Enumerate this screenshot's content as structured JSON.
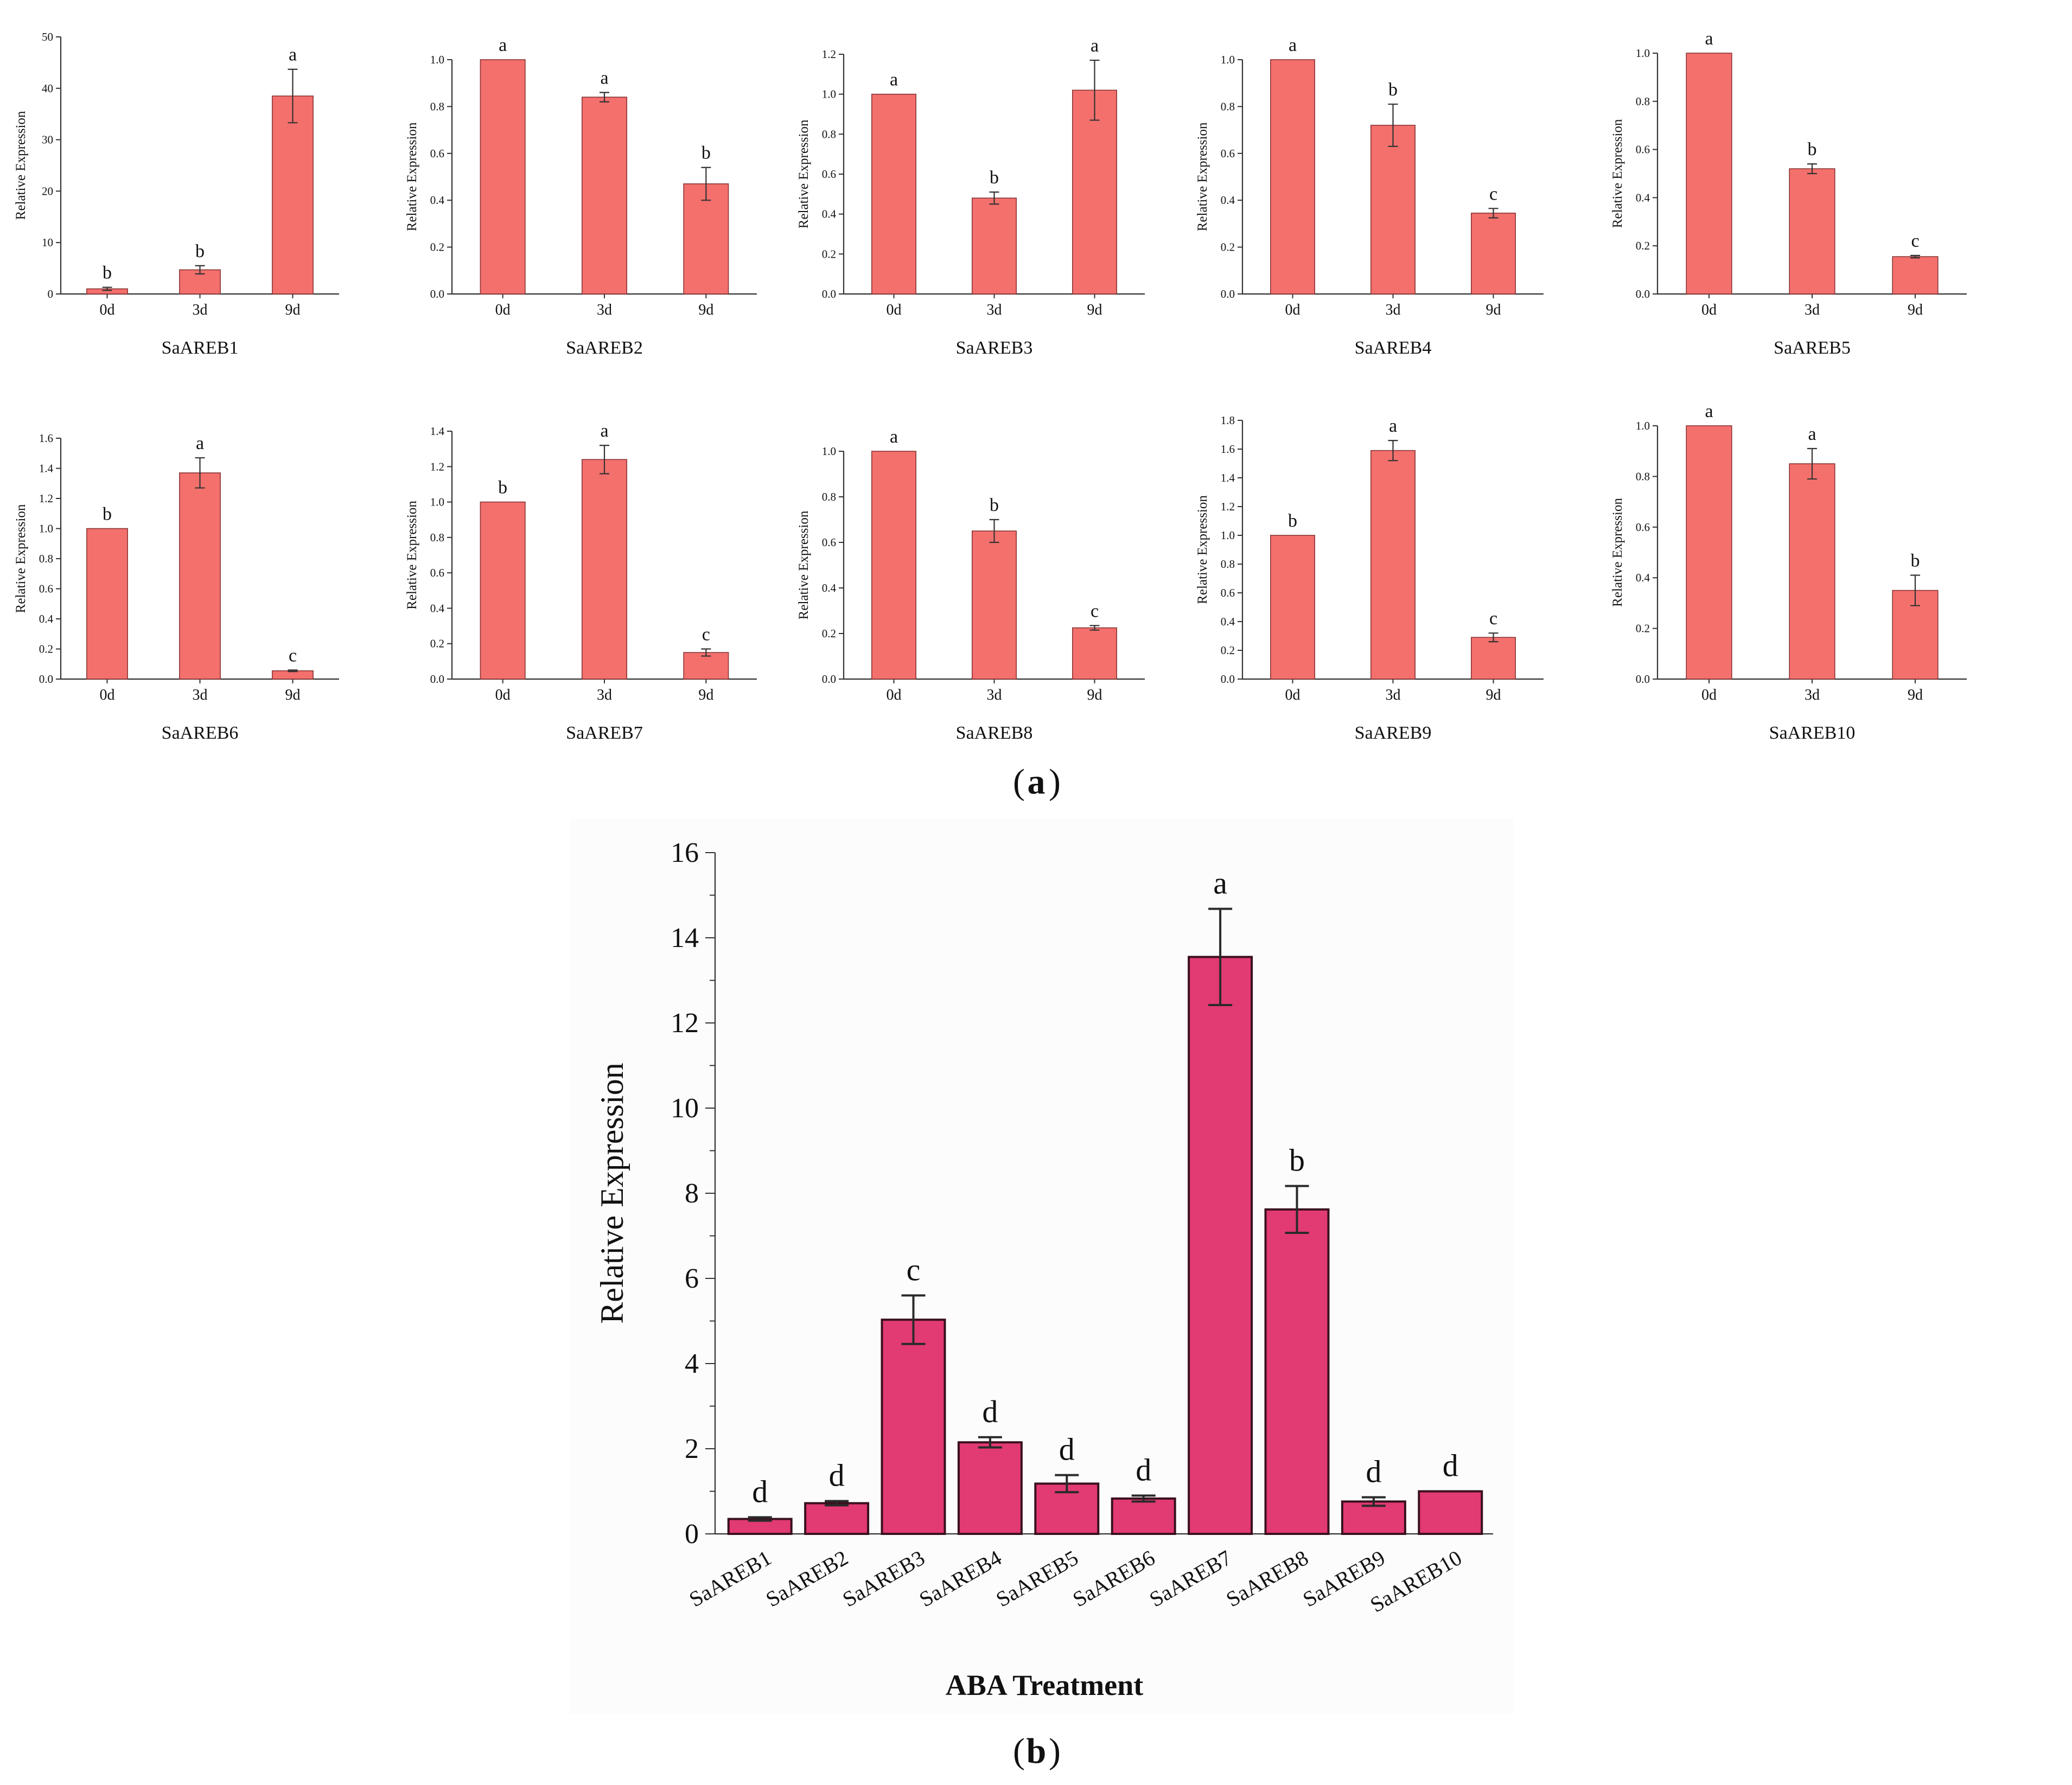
{
  "panel_a_label": "a",
  "panel_b_label": "b",
  "colors": {
    "panel_a_bar": "#F4706D",
    "panel_a_bar_edge": "#8a3535",
    "panel_b_bar": "#E23A72",
    "panel_b_bar_edge": "#3a1020",
    "axis": "#333333"
  },
  "chart_data": [
    {
      "type": "bar",
      "title": "",
      "xlabel": "SaAREB1",
      "ylabel": "Relative Expression",
      "categories": [
        "0d",
        "3d",
        "9d"
      ],
      "values": [
        1.0,
        4.7,
        38.5
      ],
      "errors": [
        0.3,
        0.8,
        5.2
      ],
      "letters": [
        "b",
        "b",
        "a"
      ],
      "ylim": [
        0,
        50
      ],
      "yticks": [
        0,
        10,
        20,
        30,
        40,
        50
      ],
      "decimals": 0
    },
    {
      "type": "bar",
      "title": "",
      "xlabel": "SaAREB2",
      "ylabel": "Relative Expression",
      "categories": [
        "0d",
        "3d",
        "9d"
      ],
      "values": [
        1.0,
        0.84,
        0.47
      ],
      "errors": [
        0.0,
        0.02,
        0.07
      ],
      "letters": [
        "a",
        "a",
        "b"
      ],
      "ylim": [
        0,
        1.0
      ],
      "yticks": [
        0,
        0.2,
        0.4,
        0.6,
        0.8,
        1.0
      ],
      "decimals": 1
    },
    {
      "type": "bar",
      "title": "",
      "xlabel": "SaAREB3",
      "ylabel": "Relative Expression",
      "categories": [
        "0d",
        "3d",
        "9d"
      ],
      "values": [
        1.0,
        0.48,
        1.02
      ],
      "errors": [
        0.0,
        0.03,
        0.15
      ],
      "letters": [
        "a",
        "b",
        "a"
      ],
      "ylim": [
        0,
        1.2
      ],
      "yticks": [
        0,
        0.2,
        0.4,
        0.6,
        0.8,
        1.0,
        1.2
      ],
      "decimals": 1
    },
    {
      "type": "bar",
      "title": "",
      "xlabel": "SaAREB4",
      "ylabel": "Relative Expression",
      "categories": [
        "0d",
        "3d",
        "9d"
      ],
      "values": [
        1.0,
        0.72,
        0.345
      ],
      "errors": [
        0.0,
        0.09,
        0.02
      ],
      "letters": [
        "a",
        "b",
        "c"
      ],
      "ylim": [
        0,
        1.0
      ],
      "yticks": [
        0,
        0.2,
        0.4,
        0.6,
        0.8,
        1.0
      ],
      "decimals": 1
    },
    {
      "type": "bar",
      "title": "",
      "xlabel": "SaAREB5",
      "ylabel": "Relative Expression",
      "categories": [
        "0d",
        "3d",
        "9d"
      ],
      "values": [
        1.0,
        0.52,
        0.155
      ],
      "errors": [
        0.0,
        0.02,
        0.005
      ],
      "letters": [
        "a",
        "b",
        "c"
      ],
      "ylim": [
        0,
        1.0
      ],
      "yticks": [
        0,
        0.2,
        0.4,
        0.6,
        0.8,
        1.0
      ],
      "decimals": 1
    },
    {
      "type": "bar",
      "title": "",
      "xlabel": "SaAREB6",
      "ylabel": "Relative Expression",
      "categories": [
        "0d",
        "3d",
        "9d"
      ],
      "values": [
        1.0,
        1.37,
        0.055
      ],
      "errors": [
        0.0,
        0.1,
        0.005
      ],
      "letters": [
        "b",
        "a",
        "c"
      ],
      "ylim": [
        0,
        1.6
      ],
      "yticks": [
        0,
        0.2,
        0.4,
        0.6,
        0.8,
        1.0,
        1.2,
        1.4,
        1.6
      ],
      "decimals": 1
    },
    {
      "type": "bar",
      "title": "",
      "xlabel": "SaAREB7",
      "ylabel": "Relative Expression",
      "categories": [
        "0d",
        "3d",
        "9d"
      ],
      "values": [
        1.0,
        1.24,
        0.15
      ],
      "errors": [
        0.0,
        0.08,
        0.02
      ],
      "letters": [
        "b",
        "a",
        "c"
      ],
      "ylim": [
        0,
        1.4
      ],
      "yticks": [
        0,
        0.2,
        0.4,
        0.6,
        0.8,
        1.0,
        1.2,
        1.4
      ],
      "decimals": 1
    },
    {
      "type": "bar",
      "title": "",
      "xlabel": "SaAREB8",
      "ylabel": "Relative Expression",
      "categories": [
        "0d",
        "3d",
        "9d"
      ],
      "values": [
        1.0,
        0.65,
        0.225
      ],
      "errors": [
        0.0,
        0.05,
        0.01
      ],
      "letters": [
        "a",
        "b",
        "c"
      ],
      "ylim": [
        0,
        1.0
      ],
      "yticks": [
        0,
        0.2,
        0.4,
        0.6,
        0.8,
        1.0
      ],
      "decimals": 1
    },
    {
      "type": "bar",
      "title": "",
      "xlabel": "SaAREB9",
      "ylabel": "Relative Expression",
      "categories": [
        "0d",
        "3d",
        "9d"
      ],
      "values": [
        1.0,
        1.59,
        0.29
      ],
      "errors": [
        0.0,
        0.07,
        0.03
      ],
      "letters": [
        "b",
        "a",
        "c"
      ],
      "ylim": [
        0,
        1.8
      ],
      "yticks": [
        0,
        0.2,
        0.4,
        0.6,
        0.8,
        1.0,
        1.2,
        1.4,
        1.6,
        1.8
      ],
      "decimals": 1
    },
    {
      "type": "bar",
      "title": "",
      "xlabel": "SaAREB10",
      "ylabel": "Relative Expression",
      "categories": [
        "0d",
        "3d",
        "9d"
      ],
      "values": [
        1.0,
        0.85,
        0.35
      ],
      "errors": [
        0.0,
        0.06,
        0.06
      ],
      "letters": [
        "a",
        "a",
        "b"
      ],
      "ylim": [
        0,
        1.0
      ],
      "yticks": [
        0,
        0.2,
        0.4,
        0.6,
        0.8,
        1.0
      ],
      "decimals": 1
    },
    {
      "type": "bar",
      "title": "",
      "xlabel": "ABA Treatment",
      "ylabel": "Relative Expression",
      "categories": [
        "SaAREB1",
        "SaAREB2",
        "SaAREB3",
        "SaAREB4",
        "SaAREB5",
        "SaAREB6",
        "SaAREB7",
        "SaAREB8",
        "SaAREB9",
        "SaAREB10"
      ],
      "values": [
        0.35,
        0.72,
        5.03,
        2.15,
        1.18,
        0.83,
        13.55,
        7.62,
        0.76,
        1.0
      ],
      "errors": [
        0.04,
        0.05,
        0.57,
        0.12,
        0.2,
        0.07,
        1.13,
        0.55,
        0.1,
        0.0
      ],
      "letters": [
        "d",
        "d",
        "c",
        "d",
        "d",
        "d",
        "a",
        "b",
        "d",
        "d"
      ],
      "ylim": [
        0,
        16
      ],
      "yticks": [
        0,
        2,
        4,
        6,
        8,
        10,
        12,
        14,
        16
      ],
      "decimals": 0
    }
  ]
}
